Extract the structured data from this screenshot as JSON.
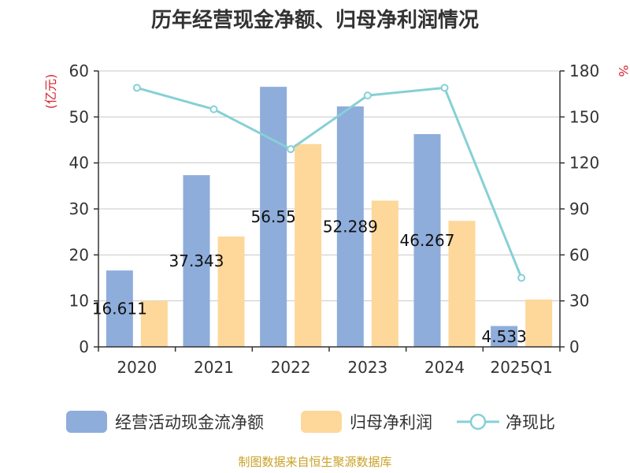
{
  "chart_data": {
    "type": "bar",
    "title": "历年经营现金净额、归母净利润情况",
    "categories": [
      "2020",
      "2021",
      "2022",
      "2023",
      "2024",
      "2025Q1"
    ],
    "series": [
      {
        "name": "经营活动现金流净额",
        "type": "bar",
        "axis": "left",
        "color": "#8eaddb",
        "values": [
          16.611,
          37.343,
          56.553,
          52.289,
          46.267,
          4.533
        ],
        "labels": [
          "16.611",
          "37.343",
          "56.55",
          "52.289",
          "46.267",
          "4.533"
        ]
      },
      {
        "name": "归母净利润",
        "type": "bar",
        "axis": "left",
        "color": "#fdd89a",
        "values": [
          10.0,
          24.0,
          44.1,
          31.8,
          27.4,
          10.3
        ]
      },
      {
        "name": "净现比",
        "type": "line",
        "axis": "right",
        "color": "#86d0d6",
        "values": [
          169,
          155,
          129,
          164,
          169,
          45
        ]
      }
    ],
    "y_left": {
      "label": "(亿元)",
      "min": 0,
      "max": 60,
      "ticks": [
        0,
        10,
        20,
        30,
        40,
        50,
        60
      ]
    },
    "y_right": {
      "label": "%",
      "min": 0,
      "max": 180,
      "ticks": [
        0,
        30,
        60,
        90,
        120,
        150,
        180
      ]
    },
    "grid": true,
    "legend": "bottom"
  },
  "source": "制图数据来自恒生聚源数据库"
}
